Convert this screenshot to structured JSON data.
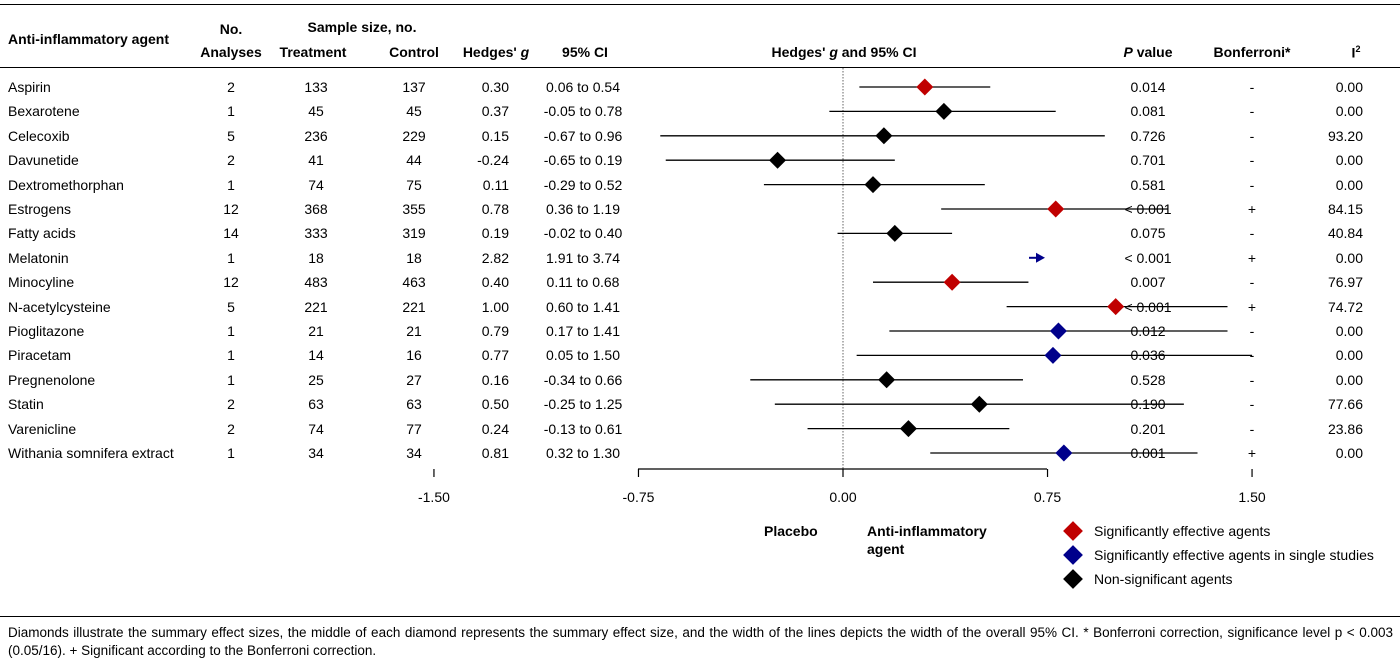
{
  "headers": {
    "agent": "Anti-inflammatory agent",
    "no": "No.",
    "analyses": "Analyses",
    "sample_size": "Sample size, no.",
    "treatment": "Treatment",
    "control": "Control",
    "hedges_prefix": "Hedges' ",
    "hedges_g": "g",
    "ci": "95% CI",
    "plot_title_prefix": "Hedges' ",
    "plot_title_g": "g",
    "plot_title_suffix": " and 95% CI",
    "p_letter": "P",
    "p_suffix": " value",
    "bonferroni": "Bonferroni*",
    "i2": "I",
    "i2_sup": "2"
  },
  "chart_data": {
    "type": "forest",
    "xlim": [
      -1.5,
      1.5
    ],
    "xticks": [
      "-1.50",
      "-0.75",
      "0.00",
      "0.75",
      "1.50"
    ],
    "xtick_values": [
      -1.5,
      -0.75,
      0,
      0.75,
      1.5
    ],
    "left_label": "Placebo",
    "right_label_line1": "Anti-inflammatory",
    "right_label_line2": "agent",
    "colors": {
      "red": "#c00000",
      "blue": "#00008b",
      "black": "#000000"
    },
    "legend": [
      {
        "label": "Significantly effective agents",
        "color": "red"
      },
      {
        "label": "Significantly effective agents in single studies",
        "color": "blue"
      },
      {
        "label": "Non-significant agents",
        "color": "black"
      }
    ],
    "rows": [
      {
        "agent": "Aspirin",
        "analyses": "2",
        "treatment": "133",
        "control": "137",
        "g": 0.3,
        "g_text": "0.30",
        "lo": 0.06,
        "hi": 0.54,
        "ci_text": "0.06 to 0.54",
        "p": "0.014",
        "bonf": "-",
        "i2": "0.00",
        "color": "red"
      },
      {
        "agent": "Bexarotene",
        "analyses": "1",
        "treatment": "45",
        "control": "45",
        "g": 0.37,
        "g_text": "0.37",
        "lo": -0.05,
        "hi": 0.78,
        "ci_text": "-0.05 to 0.78",
        "p": "0.081",
        "bonf": "-",
        "i2": "0.00",
        "color": "black"
      },
      {
        "agent": "Celecoxib",
        "analyses": "5",
        "treatment": "236",
        "control": "229",
        "g": 0.15,
        "g_text": "0.15",
        "lo": -0.67,
        "hi": 0.96,
        "ci_text": "-0.67 to 0.96",
        "p": "0.726",
        "bonf": "-",
        "i2": "93.20",
        "color": "black"
      },
      {
        "agent": "Davunetide",
        "analyses": "2",
        "treatment": "41",
        "control": "44",
        "g": -0.24,
        "g_text": "-0.24",
        "lo": -0.65,
        "hi": 0.19,
        "ci_text": "-0.65 to 0.19",
        "p": "0.701",
        "bonf": "-",
        "i2": "0.00",
        "color": "black"
      },
      {
        "agent": "Dextromethorphan",
        "analyses": "1",
        "treatment": "74",
        "control": "75",
        "g": 0.11,
        "g_text": "0.11",
        "lo": -0.29,
        "hi": 0.52,
        "ci_text": "-0.29 to 0.52",
        "p": "0.581",
        "bonf": "-",
        "i2": "0.00",
        "color": "black"
      },
      {
        "agent": "Estrogens",
        "analyses": "12",
        "treatment": "368",
        "control": "355",
        "g": 0.78,
        "g_text": "0.78",
        "lo": 0.36,
        "hi": 1.19,
        "ci_text": "0.36 to 1.19",
        "p": "< 0.001",
        "bonf": "+",
        "i2": "84.15",
        "color": "red"
      },
      {
        "agent": "Fatty acids",
        "analyses": "14",
        "treatment": "333",
        "control": "319",
        "g": 0.19,
        "g_text": "0.19",
        "lo": -0.02,
        "hi": 0.4,
        "ci_text": "-0.02 to 0.40",
        "p": "0.075",
        "bonf": "-",
        "i2": "40.84",
        "color": "black"
      },
      {
        "agent": "Melatonin",
        "analyses": "1",
        "treatment": "18",
        "control": "18",
        "g": 2.82,
        "g_text": "2.82",
        "lo": 1.91,
        "hi": 3.74,
        "ci_text": "1.91 to 3.74",
        "p": "< 0.001",
        "bonf": "+",
        "i2": "0.00",
        "color": "blue"
      },
      {
        "agent": "Minocyline",
        "analyses": "12",
        "treatment": "483",
        "control": "463",
        "g": 0.4,
        "g_text": "0.40",
        "lo": 0.11,
        "hi": 0.68,
        "ci_text": "0.11 to 0.68",
        "p": "0.007",
        "bonf": "-",
        "i2": "76.97",
        "color": "red"
      },
      {
        "agent": "N-acetylcysteine",
        "analyses": "5",
        "treatment": "221",
        "control": "221",
        "g": 1.0,
        "g_text": "1.00",
        "lo": 0.6,
        "hi": 1.41,
        "ci_text": "0.60 to 1.41",
        "p": "< 0.001",
        "bonf": "+",
        "i2": "74.72",
        "color": "red"
      },
      {
        "agent": "Pioglitazone",
        "analyses": "1",
        "treatment": "21",
        "control": "21",
        "g": 0.79,
        "g_text": "0.79",
        "lo": 0.17,
        "hi": 1.41,
        "ci_text": "0.17 to 1.41",
        "p": "0.012",
        "bonf": "-",
        "i2": "0.00",
        "color": "blue"
      },
      {
        "agent": "Piracetam",
        "analyses": "1",
        "treatment": "14",
        "control": "16",
        "g": 0.77,
        "g_text": "0.77",
        "lo": 0.05,
        "hi": 1.5,
        "ci_text": "0.05 to 1.50",
        "p": "0.036",
        "bonf": "-",
        "i2": "0.00",
        "color": "blue"
      },
      {
        "agent": "Pregnenolone",
        "analyses": "1",
        "treatment": "25",
        "control": "27",
        "g": 0.16,
        "g_text": "0.16",
        "lo": -0.34,
        "hi": 0.66,
        "ci_text": "-0.34 to 0.66",
        "p": "0.528",
        "bonf": "-",
        "i2": "0.00",
        "color": "black"
      },
      {
        "agent": "Statin",
        "analyses": "2",
        "treatment": "63",
        "control": "63",
        "g": 0.5,
        "g_text": "0.50",
        "lo": -0.25,
        "hi": 1.25,
        "ci_text": "-0.25 to 1.25",
        "p": "0.190",
        "bonf": "-",
        "i2": "77.66",
        "color": "black"
      },
      {
        "agent": "Varenicline",
        "analyses": "2",
        "treatment": "74",
        "control": "77",
        "g": 0.24,
        "g_text": "0.24",
        "lo": -0.13,
        "hi": 0.61,
        "ci_text": "-0.13 to 0.61",
        "p": "0.201",
        "bonf": "-",
        "i2": "23.86",
        "color": "black"
      },
      {
        "agent": "Withania somnifera extract",
        "analyses": "1",
        "treatment": "34",
        "control": "34",
        "g": 0.81,
        "g_text": "0.81",
        "lo": 0.32,
        "hi": 1.3,
        "ci_text": "0.32 to 1.30",
        "p": "0.001",
        "bonf": "+",
        "i2": "0.00",
        "color": "blue"
      }
    ]
  },
  "footnote": "Diamonds illustrate the summary effect sizes, the middle of each diamond represents the summary effect size, and the width of the lines depicts the width of the overall 95% CI. * Bonferroni correction, significance level p < 0.003 (0.05/16). + Significant according to the Bonferroni correction."
}
